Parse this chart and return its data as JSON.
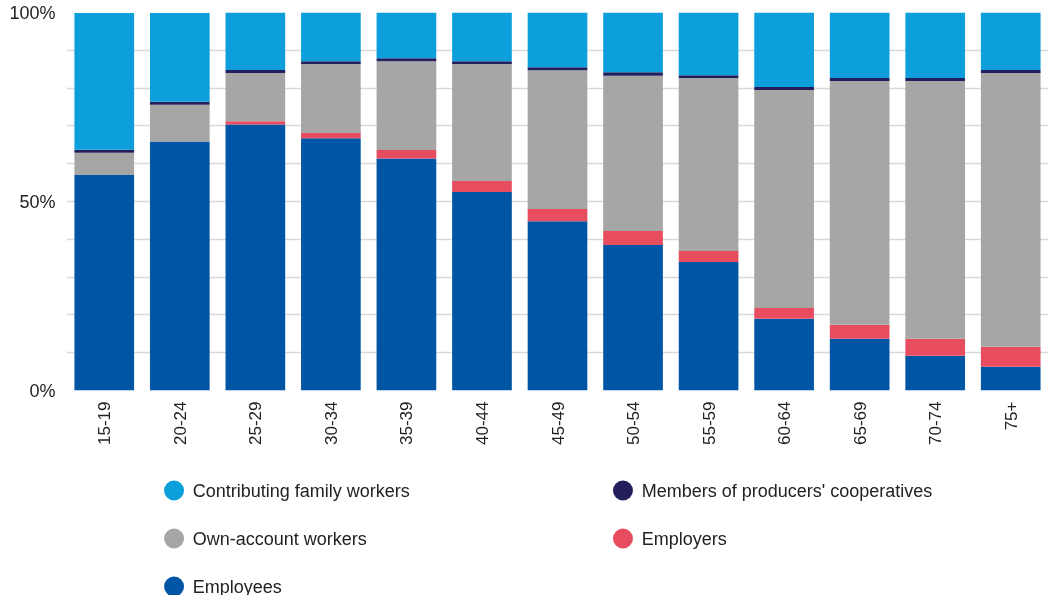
{
  "chart_data": {
    "type": "bar",
    "stacked": true,
    "categories": [
      "15-19",
      "20-24",
      "25-29",
      "30-34",
      "35-39",
      "40-44",
      "45-49",
      "50-54",
      "55-59",
      "60-64",
      "65-69",
      "70-74",
      "75+"
    ],
    "series": [
      {
        "name": "Employees",
        "color": "#0055a5",
        "values": [
          57.0,
          65.9,
          70.4,
          66.7,
          61.4,
          52.5,
          44.8,
          38.5,
          34.0,
          19.0,
          13.7,
          9.2,
          6.3
        ]
      },
      {
        "name": "Employers",
        "color": "#e84c5f",
        "values": [
          null,
          null,
          0.8,
          1.4,
          2.2,
          2.9,
          3.2,
          3.7,
          2.9,
          2.8,
          3.7,
          4.5,
          5.3
        ]
      },
      {
        "name": "Own-account workers",
        "color": "#a5a6a5",
        "values": [
          5.9,
          9.7,
          12.8,
          18.3,
          23.5,
          31.0,
          36.7,
          41.1,
          45.8,
          57.7,
          64.5,
          68.2,
          72.4
        ]
      },
      {
        "name": "Members of producers' cooperatives",
        "color": "#231f5c",
        "values": [
          0.8,
          0.8,
          0.8,
          0.7,
          0.8,
          0.7,
          0.8,
          0.9,
          0.7,
          0.8,
          0.8,
          0.8,
          0.8
        ]
      },
      {
        "name": "Contributing family workers",
        "color": "#0c9fdb",
        "values": [
          36.2,
          23.5,
          15.2,
          12.9,
          12.1,
          12.9,
          14.5,
          15.8,
          16.6,
          19.7,
          17.3,
          17.3,
          15.2
        ]
      }
    ],
    "ylim": [
      0,
      100
    ],
    "yticks": [
      {
        "value": 0,
        "label": "0%"
      },
      {
        "value": 10,
        "label": null
      },
      {
        "value": 20,
        "label": null
      },
      {
        "value": 30,
        "label": null
      },
      {
        "value": 40,
        "label": null
      },
      {
        "value": 50,
        "label": "50%"
      },
      {
        "value": 60,
        "label": null
      },
      {
        "value": 70,
        "label": null
      },
      {
        "value": 80,
        "label": null
      },
      {
        "value": 90,
        "label": null
      },
      {
        "value": 100,
        "label": "100%"
      }
    ],
    "grid": "y",
    "legend": "bottom"
  }
}
